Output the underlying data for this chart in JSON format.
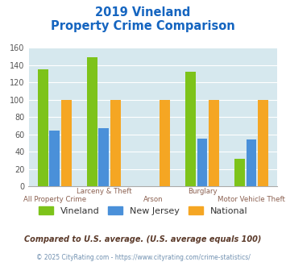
{
  "title_line1": "2019 Vineland",
  "title_line2": "Property Crime Comparison",
  "categories": [
    "All Property Crime",
    "Larceny & Theft",
    "Arson",
    "Burglary",
    "Motor Vehicle Theft"
  ],
  "series": {
    "Vineland": [
      135,
      149,
      0,
      132,
      32
    ],
    "New Jersey": [
      64,
      67,
      0,
      55,
      54
    ],
    "National": [
      100,
      100,
      100,
      100,
      100
    ]
  },
  "colors": {
    "Vineland": "#7DC31A",
    "New Jersey": "#4A90D9",
    "National": "#F5A623"
  },
  "ylim": [
    0,
    160
  ],
  "yticks": [
    0,
    20,
    40,
    60,
    80,
    100,
    120,
    140,
    160
  ],
  "bg_color": "#D6E8EE",
  "title_color": "#1565C0",
  "xlabel_color": "#8B6050",
  "footer_text1": "Compared to U.S. average. (U.S. average equals 100)",
  "footer_text2": "© 2025 CityRating.com - https://www.cityrating.com/crime-statistics/",
  "footer_color1": "#5B3A2A",
  "footer_color2": "#7090B0"
}
